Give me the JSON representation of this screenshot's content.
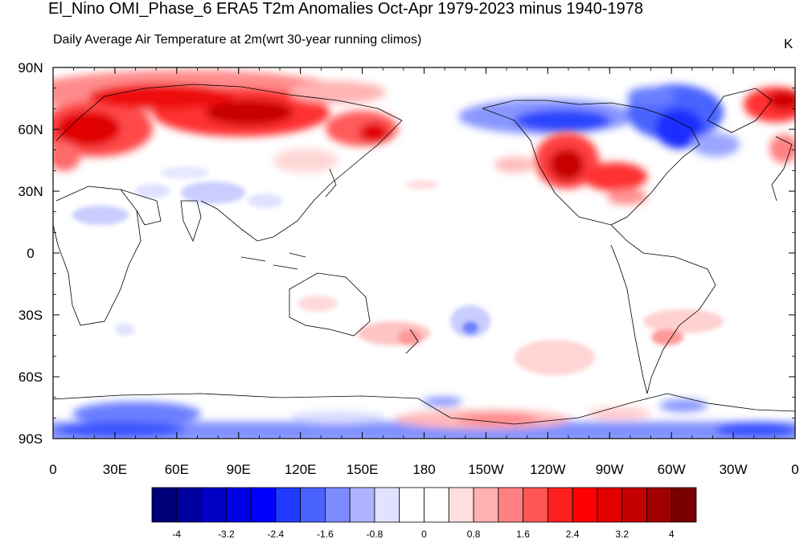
{
  "header": {
    "title": "El_Nino OMI_Phase_6 ERA5 T2m Anomalies Oct-Apr 1979-2023 minus 1940-1978",
    "subtitle": "Daily Average Air Temperature at 2m(wrt 30-year running climos)",
    "units": "K"
  },
  "map": {
    "projection": "cylindrical-equidistant",
    "center_longitude": 180,
    "lat_range": [
      -90,
      90
    ],
    "lon_range": [
      0,
      360
    ],
    "lat_labels": [
      "90N",
      "60N",
      "30N",
      "0",
      "30S",
      "60S",
      "90S"
    ],
    "lon_labels": [
      "0",
      "30E",
      "60E",
      "90E",
      "120E",
      "150E",
      "180",
      "150W",
      "120W",
      "90W",
      "60W",
      "30W",
      "0"
    ],
    "anomaly_regions": [
      {
        "name": "arctic-siberia-warm",
        "description": "strong warm anomaly",
        "level": 3.2
      },
      {
        "name": "east-asia-warm",
        "description": "warm anomaly",
        "level": 2.4
      },
      {
        "name": "western-north-america-warm",
        "description": "strong warm anomaly",
        "level": 3.2
      },
      {
        "name": "eastern-north-america-warm",
        "description": "warm anomaly",
        "level": 2.4
      },
      {
        "name": "canada-cold",
        "description": "strong cold anomaly",
        "level": -3.2
      },
      {
        "name": "greenland-warm",
        "description": "warm anomaly",
        "level": 2.8
      },
      {
        "name": "antarctica-cold",
        "description": "cold anomaly",
        "level": -2.4
      },
      {
        "name": "southern-ocean-warm",
        "description": "weak warm anomaly",
        "level": 0.8
      }
    ]
  },
  "colorbar": {
    "colors": [
      "#00007a",
      "#0000a0",
      "#0000c4",
      "#0000e6",
      "#0000ff",
      "#1f3bff",
      "#4a63ff",
      "#7d8aff",
      "#adb3ff",
      "#e0e3ff",
      "#ffffff",
      "#ffffff",
      "#ffdede",
      "#ffb0b0",
      "#ff8080",
      "#ff5555",
      "#ff2020",
      "#ff0000",
      "#e00000",
      "#c40000",
      "#a00000",
      "#7a0000"
    ],
    "labels": [
      "-4",
      "-3.2",
      "-2.4",
      "-1.6",
      "-0.8",
      "0",
      "0.8",
      "1.6",
      "2.4",
      "3.2",
      "4"
    ]
  }
}
